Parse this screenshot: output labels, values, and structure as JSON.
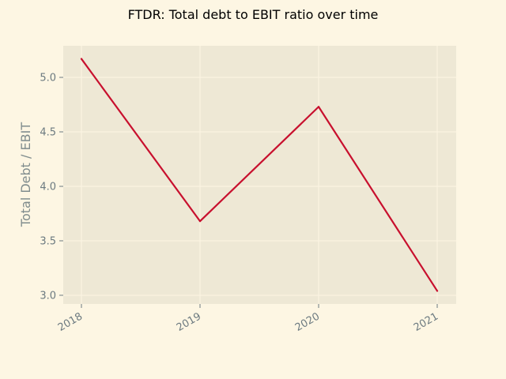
{
  "chart_data": {
    "type": "line",
    "title": "FTDR: Total debt to EBIT ratio over time",
    "xlabel": "",
    "ylabel": "Total Debt / EBIT",
    "x": [
      "2018",
      "2019",
      "2020",
      "2021"
    ],
    "series": [
      {
        "values": [
          5.17,
          3.68,
          4.73,
          3.04
        ],
        "color": "#c8102e"
      }
    ],
    "yticks": [
      "3.0",
      "3.5",
      "4.0",
      "4.5",
      "5.0"
    ],
    "ylim": [
      2.92,
      5.29
    ],
    "grid": true
  },
  "colors": {
    "page_background": "#fdf6e3",
    "plot_background": "#eee8d5",
    "grid": "#fdf6e3",
    "line": "#c8102e",
    "tick_text": "#6c7a80"
  }
}
